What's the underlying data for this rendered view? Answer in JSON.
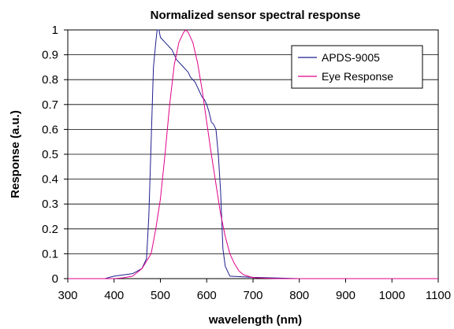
{
  "chart_data": {
    "type": "line",
    "title": "Normalized sensor spectral response",
    "xlabel": "wavelength (nm)",
    "ylabel": "Response (a.u.)",
    "xlim": [
      300,
      1100
    ],
    "ylim": [
      0,
      1
    ],
    "xticks": [
      "300",
      "400",
      "500",
      "600",
      "700",
      "800",
      "900",
      "1000",
      "1100"
    ],
    "yticks": [
      "0",
      "0.1",
      "0.2",
      "0.3",
      "0.4",
      "0.5",
      "0.6",
      "0.7",
      "0.8",
      "0.9",
      "1"
    ],
    "grid": "horizontal",
    "legend_position": "top-right",
    "series": [
      {
        "name": "APDS-9005",
        "color": "#1f1f8f",
        "points": [
          [
            300,
            0.0
          ],
          [
            380,
            0.0
          ],
          [
            400,
            0.01
          ],
          [
            420,
            0.015
          ],
          [
            440,
            0.02
          ],
          [
            460,
            0.04
          ],
          [
            470,
            0.08
          ],
          [
            475,
            0.25
          ],
          [
            480,
            0.55
          ],
          [
            485,
            0.85
          ],
          [
            490,
            0.95
          ],
          [
            493,
            1.0
          ],
          [
            497,
            1.0
          ],
          [
            500,
            0.97
          ],
          [
            505,
            0.96
          ],
          [
            510,
            0.95
          ],
          [
            515,
            0.94
          ],
          [
            520,
            0.93
          ],
          [
            525,
            0.92
          ],
          [
            530,
            0.9
          ],
          [
            535,
            0.88
          ],
          [
            540,
            0.87
          ],
          [
            545,
            0.86
          ],
          [
            550,
            0.85
          ],
          [
            555,
            0.84
          ],
          [
            560,
            0.83
          ],
          [
            565,
            0.81
          ],
          [
            570,
            0.8
          ],
          [
            575,
            0.79
          ],
          [
            580,
            0.77
          ],
          [
            585,
            0.75
          ],
          [
            590,
            0.73
          ],
          [
            595,
            0.72
          ],
          [
            600,
            0.7
          ],
          [
            605,
            0.67
          ],
          [
            610,
            0.63
          ],
          [
            615,
            0.62
          ],
          [
            620,
            0.6
          ],
          [
            625,
            0.5
          ],
          [
            630,
            0.35
          ],
          [
            635,
            0.12
          ],
          [
            640,
            0.05
          ],
          [
            650,
            0.01
          ],
          [
            700,
            0.005
          ],
          [
            800,
            0.0
          ],
          [
            900,
            0.0
          ],
          [
            1100,
            0.0
          ]
        ]
      },
      {
        "name": "Eye Response",
        "color": "#e0008a",
        "points": [
          [
            300,
            0.0
          ],
          [
            400,
            0.0
          ],
          [
            420,
            0.003
          ],
          [
            440,
            0.01
          ],
          [
            460,
            0.04
          ],
          [
            470,
            0.07
          ],
          [
            480,
            0.1
          ],
          [
            490,
            0.2
          ],
          [
            500,
            0.32
          ],
          [
            510,
            0.5
          ],
          [
            520,
            0.7
          ],
          [
            530,
            0.86
          ],
          [
            540,
            0.95
          ],
          [
            550,
            0.99
          ],
          [
            555,
            1.0
          ],
          [
            560,
            0.99
          ],
          [
            570,
            0.95
          ],
          [
            580,
            0.87
          ],
          [
            590,
            0.76
          ],
          [
            600,
            0.63
          ],
          [
            610,
            0.5
          ],
          [
            620,
            0.38
          ],
          [
            630,
            0.26
          ],
          [
            640,
            0.17
          ],
          [
            650,
            0.1
          ],
          [
            660,
            0.06
          ],
          [
            670,
            0.03
          ],
          [
            680,
            0.015
          ],
          [
            700,
            0.004
          ],
          [
            750,
            0.0
          ],
          [
            1100,
            0.0
          ]
        ]
      }
    ]
  }
}
